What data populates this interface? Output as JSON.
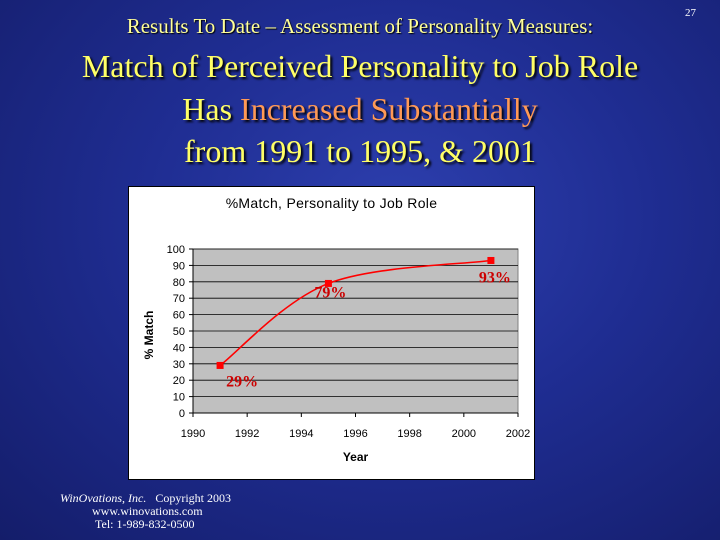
{
  "slide": {
    "page_number": "27",
    "subtitle": "Results To Date – Assessment of Personality Measures:",
    "headline_line1": "Match of Perceived Personality to Job Role",
    "headline_line2_prefix": "Has ",
    "headline_line2_highlight": "Increased Substantially",
    "headline_line3": "from 1991 to 1995, & 2001",
    "colors": {
      "background": "#2236a0",
      "subtitle": "#ffff99",
      "headline": "#ffff66",
      "highlight": "#ff9955",
      "series": "#ff0000"
    }
  },
  "chart_data": {
    "type": "line",
    "title": "%Match, Personality to Job Role",
    "xlabel": "Year",
    "ylabel": "% Match",
    "xlim": [
      1990,
      2002
    ],
    "ylim": [
      0,
      100
    ],
    "x_ticks": [
      1990,
      1992,
      1994,
      1996,
      1998,
      2000,
      2002
    ],
    "y_ticks": [
      0,
      10,
      20,
      30,
      40,
      50,
      60,
      70,
      80,
      90,
      100
    ],
    "grid": true,
    "smoothed": true,
    "series": [
      {
        "x": [
          1991,
          1995,
          2001
        ],
        "y": [
          29,
          79,
          93
        ],
        "labels": [
          "29%",
          "79%",
          "93%"
        ]
      }
    ]
  },
  "footer": {
    "company": "WinOvations, Inc.",
    "copyright": "Copyright 2003",
    "website": "www.winovations.com",
    "phone": "Tel:  1-989-832-0500"
  }
}
